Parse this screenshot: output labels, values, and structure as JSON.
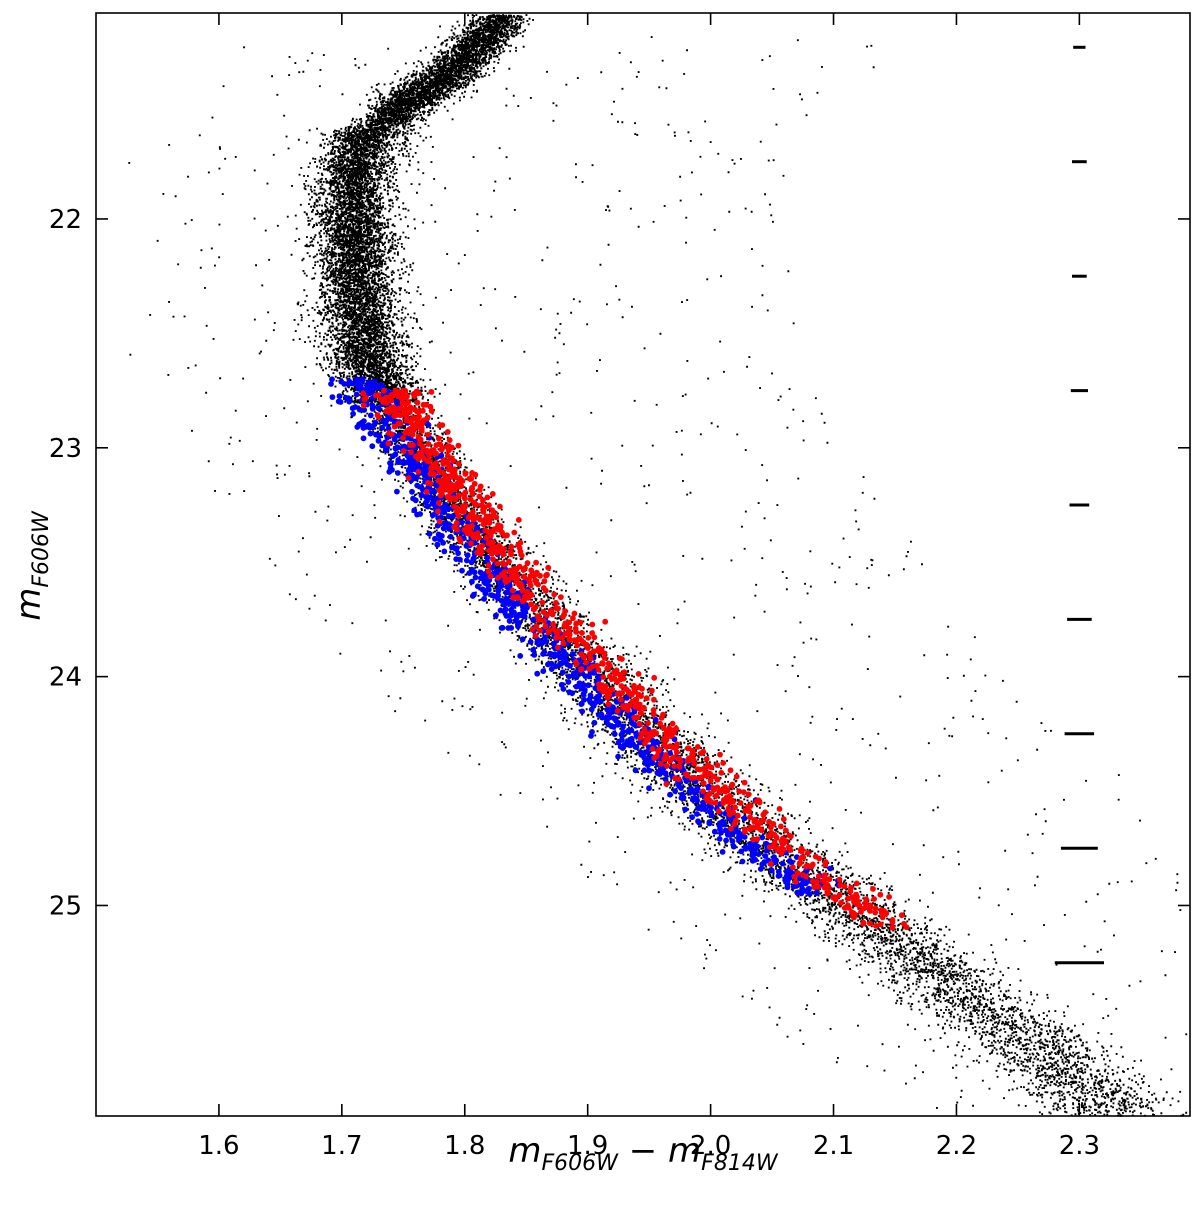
{
  "chart_data": {
    "type": "scatter",
    "title": "",
    "xlabel": {
      "main": "m",
      "sub1": "F606W",
      "op": " − ",
      "main2": "m",
      "sub2": "F814W"
    },
    "ylabel": {
      "main": "m",
      "sub": "F606W"
    },
    "xlim": [
      1.5,
      2.39
    ],
    "ylim": [
      25.92,
      21.1
    ],
    "y_inverted": true,
    "x_ticks": [
      1.6,
      1.7,
      1.8,
      1.9,
      2.0,
      2.1,
      2.2,
      2.3
    ],
    "x_tick_labels": [
      "1.6",
      "1.7",
      "1.8",
      "1.9",
      "2.0",
      "2.1",
      "2.2",
      "2.3"
    ],
    "y_ticks": [
      22,
      23,
      24,
      25
    ],
    "y_tick_labels": [
      "22",
      "23",
      "24",
      "25"
    ],
    "grid": false,
    "legend": "none",
    "colors": {
      "all_stars": "#000000",
      "population_blue": "#0000ff",
      "population_red": "#ff0000"
    },
    "ridge_line": {
      "magnitudes": [
        21.1,
        21.4,
        21.6,
        21.8,
        22.0,
        22.3,
        22.6,
        22.8,
        23.0,
        23.2,
        23.4,
        23.6,
        23.8,
        24.0,
        24.2,
        24.4,
        24.6,
        24.8,
        25.0,
        25.2,
        25.4,
        25.6,
        25.92
      ],
      "colors_x": [
        1.83,
        1.78,
        1.72,
        1.71,
        1.708,
        1.712,
        1.72,
        1.735,
        1.76,
        1.785,
        1.81,
        1.84,
        1.87,
        1.905,
        1.94,
        1.975,
        2.015,
        2.06,
        2.11,
        2.16,
        2.21,
        2.26,
        2.33
      ],
      "subgiant_branch": {
        "x_start": 1.73,
        "x_end": 1.835,
        "magnitudes": [
          21.55,
          21.45,
          21.3,
          21.1
        ]
      }
    },
    "population_red": {
      "mag_range": [
        22.75,
        25.1
      ],
      "offset_from_ridge": 0.012,
      "count": 900
    },
    "population_blue": {
      "mag_range": [
        22.7,
        24.95
      ],
      "offset_from_ridge": -0.012,
      "count": 900
    },
    "field_star_count": 900,
    "total_black_points_approx": 22000,
    "error_bars": {
      "x": 2.3,
      "magnitudes": [
        21.25,
        21.75,
        22.25,
        22.75,
        23.25,
        23.75,
        24.25,
        24.75,
        25.25
      ],
      "color_errors": [
        0.005,
        0.006,
        0.006,
        0.007,
        0.008,
        0.01,
        0.012,
        0.015,
        0.02
      ]
    }
  }
}
